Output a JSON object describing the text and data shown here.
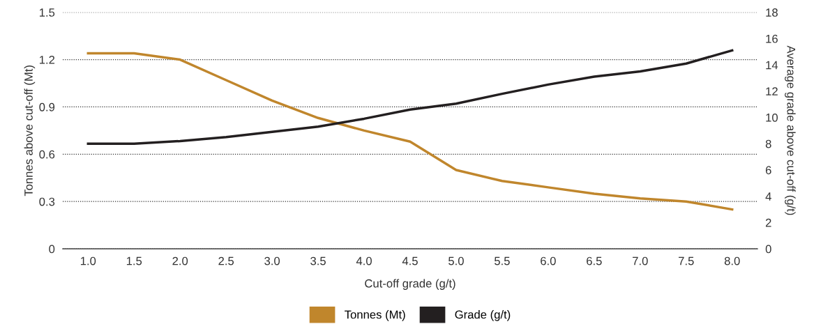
{
  "chart_data": {
    "type": "line",
    "xlabel": "Cut-off grade (g/t)",
    "ylabel": "Tonnes above cut-off (Mt)",
    "y2label": "Average grade above cut-off (g/t)",
    "categories": [
      "1.0",
      "1.5",
      "2.0",
      "2.5",
      "3.0",
      "3.5",
      "4.0",
      "4.5",
      "5.0",
      "5.5",
      "6.0",
      "6.5",
      "7.0",
      "7.5",
      "8.0"
    ],
    "series": [
      {
        "name": "Tonnes (Mt)",
        "color": "#c0862c",
        "values": [
          1.24,
          1.24,
          1.2,
          1.07,
          0.94,
          0.83,
          0.75,
          0.68,
          0.5,
          0.43,
          0.39,
          0.35,
          0.32,
          0.3,
          0.25
        ]
      },
      {
        "name": "Grade (g/t)",
        "color": "#231f20",
        "axis": "y2",
        "values": [
          8.0,
          8.0,
          8.2,
          8.5,
          8.9,
          9.3,
          9.9,
          10.6,
          11.05,
          11.8,
          12.5,
          13.1,
          13.5,
          14.1,
          15.1
        ]
      }
    ],
    "ylim": [
      0,
      1.5
    ],
    "yticks": [
      0,
      0.3,
      0.6,
      0.9,
      1.2,
      1.5
    ],
    "y2lim": [
      0,
      18
    ],
    "y2ticks": [
      0,
      2,
      4,
      6,
      8,
      10,
      12,
      14,
      16,
      18
    ],
    "grid": "y",
    "legend": "bottom",
    "marker": "none",
    "line_style": "solid"
  }
}
